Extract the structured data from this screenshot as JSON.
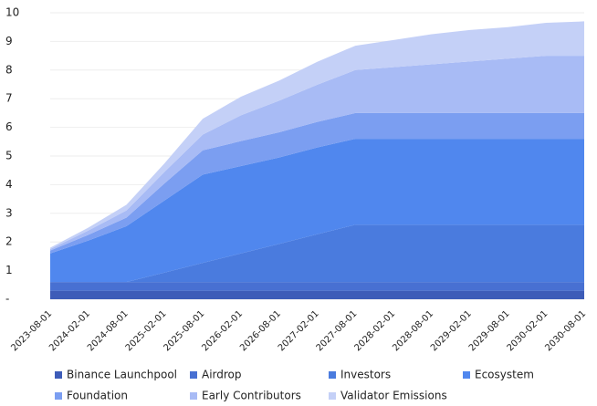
{
  "chart_data": {
    "type": "stacked_area",
    "categories": [
      "2023-08-01",
      "2024-02-01",
      "2024-08-01",
      "2025-02-01",
      "2025-08-01",
      "2026-02-01",
      "2026-08-01",
      "2027-02-01",
      "2027-08-01",
      "2028-02-01",
      "2028-08-01",
      "2029-02-01",
      "2029-08-01",
      "2030-02-01",
      "2030-08-01"
    ],
    "series": [
      {
        "name": "Binance Launchpool",
        "color": "#3d5cb8",
        "values": [
          0.3,
          0.3,
          0.3,
          0.3,
          0.3,
          0.3,
          0.3,
          0.3,
          0.3,
          0.3,
          0.3,
          0.3,
          0.3,
          0.3,
          0.3
        ]
      },
      {
        "name": "Airdrop",
        "color": "#4870d2",
        "values": [
          0.3,
          0.3,
          0.3,
          0.3,
          0.3,
          0.3,
          0.3,
          0.3,
          0.3,
          0.3,
          0.3,
          0.3,
          0.3,
          0.3,
          0.3
        ]
      },
      {
        "name": "Investors",
        "color": "#4a7bde",
        "values": [
          0,
          0,
          0,
          0.33,
          0.67,
          1.0,
          1.33,
          1.67,
          2.0,
          2.0,
          2.0,
          2.0,
          2.0,
          2.0,
          2.0
        ]
      },
      {
        "name": "Ecosystem",
        "color": "#5087ee",
        "values": [
          1.0,
          1.45,
          1.95,
          2.52,
          3.08,
          3.05,
          3.02,
          3.03,
          3.0,
          3.0,
          3.0,
          3.0,
          3.0,
          3.0,
          3.0
        ]
      },
      {
        "name": "Foundation",
        "color": "#7b9ef1",
        "values": [
          0.1,
          0.2,
          0.3,
          0.6,
          0.85,
          0.87,
          0.88,
          0.89,
          0.9,
          0.9,
          0.9,
          0.9,
          0.9,
          0.9,
          0.9
        ]
      },
      {
        "name": "Early Contributors",
        "color": "#a8bbf5",
        "values": [
          0.05,
          0.15,
          0.25,
          0.4,
          0.55,
          0.9,
          1.1,
          1.3,
          1.5,
          1.6,
          1.7,
          1.8,
          1.9,
          2.0,
          2.0
        ]
      },
      {
        "name": "Validator Emissions",
        "color": "#c4d0f7",
        "values": [
          0.05,
          0.1,
          0.2,
          0.3,
          0.55,
          0.65,
          0.7,
          0.8,
          0.85,
          0.95,
          1.05,
          1.1,
          1.1,
          1.15,
          1.2
        ]
      }
    ],
    "ylim": [
      0,
      10
    ],
    "yticks": [
      {
        "value": 0,
        "label": "-"
      },
      1,
      2,
      3,
      4,
      5,
      6,
      7,
      8,
      9,
      10
    ],
    "grid": true
  }
}
